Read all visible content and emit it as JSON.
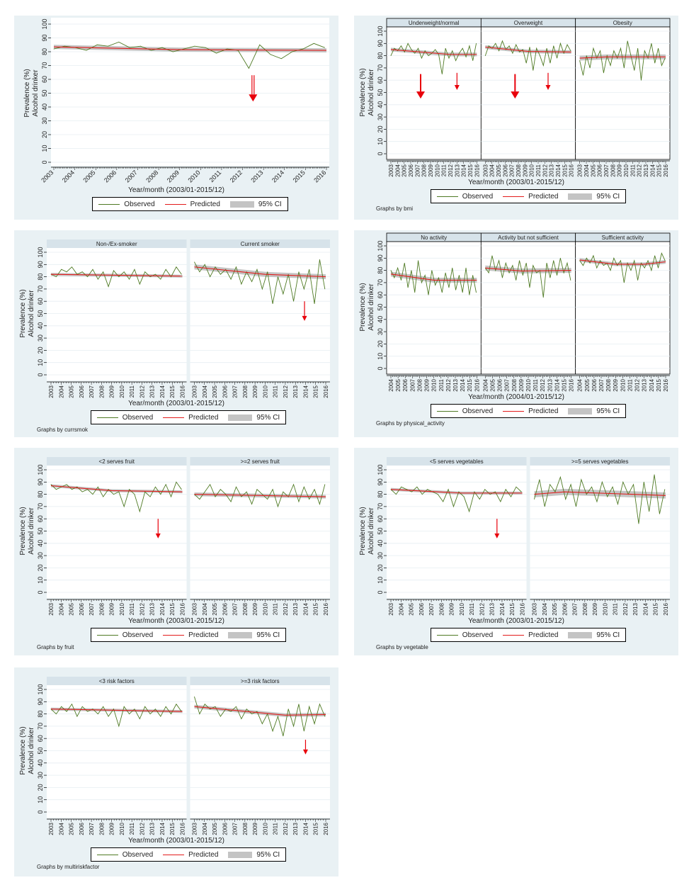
{
  "legend": {
    "observed": "Observed",
    "predicted": "Predicted",
    "ci": "95% CI"
  },
  "colors": {
    "observed": "#4f7a24",
    "predicted": "#e31b1b",
    "ci": "#c4c4c4",
    "arrow": "#e8000b",
    "figure_bg": "#e9f1f4",
    "strip_bg": "#d7e3ea"
  },
  "chart_data": [
    {
      "type": "line",
      "xlabel": "Year/month (2003/01-2015/12)",
      "ylabel": [
        "Prevalence (%)",
        "Alcohol drinker"
      ],
      "xlim": [
        2003,
        2016
      ],
      "ylim": [
        0,
        100
      ],
      "yticks": [
        0,
        10,
        20,
        30,
        40,
        50,
        60,
        70,
        80,
        90,
        100
      ],
      "note": "",
      "facets": [
        {
          "title": "",
          "observed": [
            82,
            84,
            83,
            81,
            85,
            84,
            87,
            83,
            84,
            81,
            83,
            80,
            82,
            84,
            83,
            79,
            82,
            81,
            68,
            85,
            78,
            75,
            80,
            82,
            86,
            83
          ],
          "predicted": [
            [
              2003,
              83.5
            ],
            [
              2009,
              81.5
            ],
            [
              2016,
              81
            ]
          ],
          "ci_halfwidth": 1.5,
          "arrows": [
            {
              "x": 2012.5,
              "from": 63,
              "to": 44,
              "size": "double"
            }
          ]
        }
      ]
    },
    {
      "type": "line",
      "xlabel": "Year/month (2003/01-2015/12)",
      "ylabel": [
        "Prevalence (%)",
        "Alcohol drinker"
      ],
      "xlim": [
        2003,
        2016
      ],
      "ylim": [
        0,
        100
      ],
      "yticks": [
        0,
        10,
        20,
        30,
        40,
        50,
        60,
        70,
        80,
        90,
        100
      ],
      "note": "Graphs by bmi",
      "facets": [
        {
          "title": "Underweight/normal",
          "observed": [
            80,
            86,
            84,
            88,
            83,
            90,
            85,
            82,
            86,
            78,
            84,
            80,
            82,
            85,
            81,
            65,
            86,
            78,
            84,
            76,
            82,
            86,
            79,
            88,
            76,
            90
          ],
          "predicted": [
            [
              2003,
              85
            ],
            [
              2012,
              81
            ],
            [
              2016,
              81
            ]
          ],
          "ci_halfwidth": 1.5,
          "arrows": [
            {
              "x": 2007.5,
              "from": 65,
              "to": 45,
              "size": "big"
            },
            {
              "x": 2013,
              "from": 66,
              "to": 52,
              "size": "small"
            }
          ]
        },
        {
          "title": "Overweight",
          "observed": [
            80,
            88,
            86,
            90,
            84,
            92,
            85,
            88,
            82,
            89,
            83,
            85,
            74,
            87,
            68,
            86,
            80,
            72,
            86,
            74,
            88,
            78,
            90,
            82,
            89,
            84
          ],
          "predicted": [
            [
              2003,
              87
            ],
            [
              2009.5,
              83.5
            ],
            [
              2016,
              83
            ]
          ],
          "ci_halfwidth": 1.5,
          "arrows": [
            {
              "x": 2007.5,
              "from": 65,
              "to": 45,
              "size": "big"
            },
            {
              "x": 2012.5,
              "from": 66,
              "to": 52,
              "size": "small"
            }
          ]
        },
        {
          "title": "Obesity",
          "observed": [
            76,
            64,
            80,
            70,
            86,
            78,
            84,
            66,
            80,
            72,
            84,
            78,
            86,
            70,
            92,
            80,
            68,
            86,
            60,
            84,
            78,
            90,
            74,
            86,
            72,
            78
          ],
          "predicted": [
            [
              2003,
              78
            ],
            [
              2007,
              79
            ],
            [
              2016,
              79
            ]
          ],
          "ci_halfwidth": 2,
          "arrows": []
        }
      ]
    },
    {
      "type": "line",
      "xlabel": "Year/month (2003/01-2015/12)",
      "ylabel": [
        "Prevalence (%)",
        "Alcohol drinker"
      ],
      "xlim": [
        2003,
        2016
      ],
      "ylim": [
        0,
        100
      ],
      "yticks": [
        0,
        10,
        20,
        30,
        40,
        50,
        60,
        70,
        80,
        90,
        100
      ],
      "note": "Graphs by currsmok",
      "facets": [
        {
          "title": "Non-/Ex-smoker",
          "observed": [
            82,
            80,
            86,
            84,
            88,
            82,
            84,
            80,
            86,
            78,
            84,
            72,
            85,
            80,
            84,
            78,
            86,
            74,
            84,
            80,
            82,
            78,
            86,
            80,
            88,
            82
          ],
          "predicted": [
            [
              2003,
              82
            ],
            [
              2016,
              80.5
            ]
          ],
          "ci_halfwidth": 1.2,
          "arrows": []
        },
        {
          "title": "Current smoker",
          "observed": [
            92,
            84,
            90,
            80,
            88,
            82,
            86,
            78,
            88,
            74,
            84,
            76,
            86,
            70,
            84,
            58,
            80,
            66,
            82,
            60,
            84,
            70,
            86,
            58,
            94,
            70
          ],
          "predicted": [
            [
              2003,
              88
            ],
            [
              2010,
              82
            ],
            [
              2016,
              80
            ]
          ],
          "ci_halfwidth": 2,
          "arrows": [
            {
              "x": 2013.9,
              "from": 60,
              "to": 44,
              "size": "small"
            }
          ]
        }
      ]
    },
    {
      "type": "line",
      "xlabel": "Year/month (2004/01-2015/12)",
      "ylabel": [
        "Prevalence (%)",
        "Alcohol drinker"
      ],
      "xlim": [
        2004,
        2016
      ],
      "ylim": [
        0,
        100
      ],
      "yticks": [
        0,
        10,
        20,
        30,
        40,
        50,
        60,
        70,
        80,
        90,
        100
      ],
      "note": "Graphs by physical_activity",
      "facets": [
        {
          "title": "No activity",
          "observed": [
            80,
            74,
            82,
            72,
            86,
            66,
            80,
            62,
            88,
            70,
            76,
            60,
            80,
            68,
            74,
            62,
            78,
            66,
            82,
            64,
            76,
            62,
            82,
            60,
            76,
            62
          ],
          "predicted": [
            [
              2004,
              77
            ],
            [
              2010,
              72
            ],
            [
              2016,
              72
            ]
          ],
          "ci_halfwidth": 2,
          "arrows": []
        },
        {
          "title": "Activity but not sufficient",
          "observed": [
            82,
            78,
            92,
            80,
            88,
            74,
            86,
            78,
            84,
            72,
            88,
            76,
            86,
            66,
            84,
            78,
            80,
            58,
            86,
            74,
            88,
            76,
            90,
            78,
            86,
            72
          ],
          "predicted": [
            [
              2004,
              82
            ],
            [
              2009,
              79.5
            ],
            [
              2016,
              80
            ]
          ],
          "ci_halfwidth": 2,
          "arrows": []
        },
        {
          "title": "Sufficient activity",
          "observed": [
            88,
            84,
            90,
            86,
            92,
            82,
            88,
            84,
            86,
            80,
            90,
            84,
            88,
            70,
            86,
            80,
            88,
            72,
            86,
            82,
            88,
            80,
            92,
            82,
            94,
            88
          ],
          "predicted": [
            [
              2004,
              88.5
            ],
            [
              2009,
              85
            ],
            [
              2013,
              85
            ],
            [
              2016,
              87
            ]
          ],
          "ci_halfwidth": 1.5,
          "arrows": []
        }
      ]
    },
    {
      "type": "line",
      "xlabel": "Year/month (2003/01-2015/12)",
      "ylabel": [
        "Prevalence (%)",
        "Alcohol drinker"
      ],
      "xlim": [
        2003,
        2016
      ],
      "ylim": [
        0,
        100
      ],
      "yticks": [
        0,
        10,
        20,
        30,
        40,
        50,
        60,
        70,
        80,
        90,
        100
      ],
      "note": "Graphs by fruit",
      "facets": [
        {
          "title": "<2 serves fruit",
          "observed": [
            88,
            84,
            86,
            88,
            84,
            86,
            82,
            84,
            80,
            86,
            78,
            84,
            80,
            82,
            70,
            84,
            80,
            66,
            82,
            78,
            86,
            80,
            88,
            78,
            90,
            84
          ],
          "predicted": [
            [
              2003,
              87
            ],
            [
              2009,
              83
            ],
            [
              2016,
              82
            ]
          ],
          "ci_halfwidth": 1.2,
          "arrows": [
            {
              "x": 2013.6,
              "from": 60,
              "to": 44,
              "size": "small"
            }
          ]
        },
        {
          "title": ">=2 serves fruit",
          "observed": [
            80,
            76,
            82,
            88,
            78,
            84,
            80,
            74,
            86,
            78,
            82,
            72,
            84,
            80,
            76,
            84,
            70,
            82,
            78,
            88,
            74,
            86,
            76,
            84,
            72,
            88
          ],
          "predicted": [
            [
              2003,
              80
            ],
            [
              2016,
              78
            ]
          ],
          "ci_halfwidth": 1.5,
          "arrows": []
        }
      ]
    },
    {
      "type": "line",
      "xlabel": "Year/month (2003/01-2015/12)",
      "ylabel": [
        "Prevalence (%)",
        "Alcohol drinker"
      ],
      "xlim": [
        2003,
        2016
      ],
      "ylim": [
        0,
        100
      ],
      "yticks": [
        0,
        10,
        20,
        30,
        40,
        50,
        60,
        70,
        80,
        90,
        100
      ],
      "note": "Graphs by vegetable",
      "facets": [
        {
          "title": "<5 serves vegetables",
          "observed": [
            84,
            80,
            86,
            84,
            82,
            86,
            80,
            84,
            82,
            80,
            74,
            84,
            70,
            82,
            78,
            66,
            82,
            76,
            84,
            80,
            82,
            74,
            84,
            78,
            86,
            82
          ],
          "predicted": [
            [
              2003,
              84
            ],
            [
              2010,
              81
            ],
            [
              2016,
              81
            ]
          ],
          "ci_halfwidth": 1.2,
          "arrows": [
            {
              "x": 2013.5,
              "from": 60,
              "to": 44,
              "size": "small"
            }
          ]
        },
        {
          "title": ">=5 serves vegetables",
          "observed": [
            76,
            92,
            70,
            88,
            82,
            94,
            76,
            88,
            70,
            92,
            80,
            86,
            74,
            90,
            78,
            86,
            72,
            90,
            80,
            88,
            56,
            90,
            66,
            96,
            64,
            84
          ],
          "predicted": [
            [
              2003,
              80
            ],
            [
              2006,
              82
            ],
            [
              2016,
              79
            ]
          ],
          "ci_halfwidth": 2.5,
          "arrows": []
        }
      ]
    },
    {
      "type": "line",
      "xlabel": "Year/month (2003/01-2015/12)",
      "ylabel": [
        "Prevalence (%)",
        "Alcohol drinker"
      ],
      "xlim": [
        2003,
        2016
      ],
      "ylim": [
        0,
        100
      ],
      "yticks": [
        0,
        10,
        20,
        30,
        40,
        50,
        60,
        70,
        80,
        90,
        100
      ],
      "note": "Graphs by multiriskfactor",
      "facets": [
        {
          "title": "<3 risk factors",
          "observed": [
            84,
            80,
            86,
            82,
            88,
            78,
            86,
            82,
            84,
            80,
            86,
            78,
            84,
            70,
            86,
            80,
            84,
            76,
            86,
            80,
            84,
            78,
            86,
            80,
            88,
            82
          ],
          "predicted": [
            [
              2003,
              84
            ],
            [
              2016,
              82
            ]
          ],
          "ci_halfwidth": 1.2,
          "arrows": []
        },
        {
          "title": ">=3 risk factors",
          "observed": [
            94,
            80,
            88,
            84,
            86,
            78,
            84,
            82,
            86,
            76,
            84,
            80,
            82,
            72,
            80,
            66,
            78,
            62,
            84,
            70,
            88,
            66,
            86,
            72,
            88,
            78
          ],
          "predicted": [
            [
              2003,
              86
            ],
            [
              2012,
              79
            ],
            [
              2016,
              79.5
            ]
          ],
          "ci_halfwidth": 1.5,
          "arrows": [
            {
              "x": 2014,
              "from": 59,
              "to": 47,
              "size": "small"
            }
          ]
        }
      ]
    }
  ]
}
